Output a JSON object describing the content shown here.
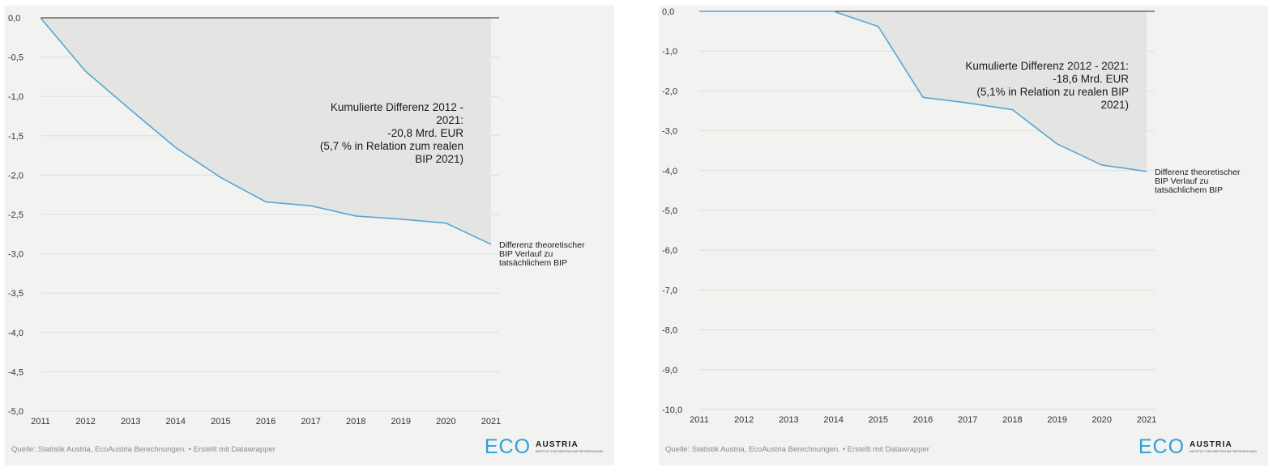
{
  "chart_data": [
    {
      "type": "area",
      "x": [
        2011,
        2012,
        2013,
        2014,
        2015,
        2016,
        2017,
        2018,
        2019,
        2020,
        2021
      ],
      "series": [
        {
          "name": "Differenz theoretischer BIP Verlauf zu tatsächlichem BIP",
          "values": [
            0.0,
            -0.68,
            -1.17,
            -1.65,
            -2.03,
            -2.34,
            -2.39,
            -2.52,
            -2.56,
            -2.61,
            -2.88
          ]
        }
      ],
      "ylim": [
        -5.0,
        0.0
      ],
      "yticks": [
        "0,0",
        "-0,5",
        "-1,0",
        "-1,5",
        "-2,0",
        "-2,5",
        "-3,0",
        "-3,5",
        "-4,0",
        "-4,5",
        "-5,0"
      ],
      "yticks_values": [
        0.0,
        -0.5,
        -1.0,
        -1.5,
        -2.0,
        -2.5,
        -3.0,
        -3.5,
        -4.0,
        -4.5,
        -5.0
      ],
      "xticks": [
        "2011",
        "2012",
        "2013",
        "2014",
        "2015",
        "2016",
        "2017",
        "2018",
        "2019",
        "2020",
        "2021"
      ],
      "annotation": [
        "Kumulierte Differenz 2012 -",
        "2021:",
        "-20,8 Mrd. EUR",
        "(5,7 % in Relation zum realen",
        "BIP 2021)"
      ],
      "end_label": [
        "Differenz theoretischer",
        "BIP Verlauf zu",
        "tatsächlichem BIP"
      ],
      "grid": true,
      "colors": {
        "line": "#55a7d6",
        "area": "#e4e4e2",
        "zero_line": "#222222",
        "grid": "#dcdcda"
      }
    },
    {
      "type": "area",
      "x": [
        2011,
        2012,
        2013,
        2014,
        2015,
        2016,
        2017,
        2018,
        2019,
        2020,
        2021
      ],
      "series": [
        {
          "name": "Differenz theoretischer BIP Verlauf zu tatsächlichem BIP",
          "values": [
            0.0,
            0.0,
            0.0,
            0.0,
            -0.38,
            -2.16,
            -2.3,
            -2.47,
            -3.33,
            -3.86,
            -4.02
          ]
        }
      ],
      "ylim": [
        -10.0,
        0.0
      ],
      "yticks": [
        "0,0",
        "-1,0",
        "-2,0",
        "-3,0",
        "-4,0",
        "-5,0",
        "-6,0",
        "-7,0",
        "-8,0",
        "-9,0",
        "-10,0"
      ],
      "yticks_values": [
        0.0,
        -1.0,
        -2.0,
        -3.0,
        -4.0,
        -5.0,
        -6.0,
        -7.0,
        -8.0,
        -9.0,
        -10.0
      ],
      "xticks": [
        "2011",
        "2012",
        "2013",
        "2014",
        "2015",
        "2016",
        "2017",
        "2018",
        "2019",
        "2020",
        "2021"
      ],
      "annotation": [
        "Kumulierte Differenz 2012 - 2021:",
        "-18,6 Mrd. EUR",
        "(5,1% in Relation zu realen BIP",
        "2021)"
      ],
      "end_label": [
        "Differenz theoretischer",
        "BIP Verlauf zu",
        "tatsächlichem BIP"
      ],
      "grid": true,
      "colors": {
        "line": "#55a7d6",
        "area": "#e4e4e2",
        "zero_line": "#222222",
        "grid": "#dcdcda"
      }
    }
  ],
  "source": "Quelle: Statistik Austria, EcoAustria Berechnungen. • Erstellt mit Datawrapper",
  "logo": {
    "eco": "ECO",
    "austria": "AUSTRIA",
    "subtitle": "INSTITUT FÜR WIRTSCHAFTSFORSCHUNG"
  }
}
